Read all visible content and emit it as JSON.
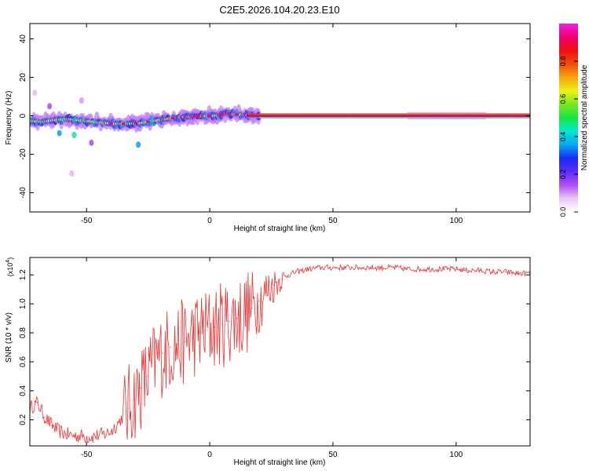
{
  "title": "C2E5.2026.104.20.23.E10",
  "colors": {
    "plot_bg": "#ffffff",
    "snr_line": "#ee3333",
    "frame": "#000000"
  },
  "chart_data": [
    {
      "type": "heatmap",
      "title": "C2E5.2026.104.20.23.E10",
      "xlabel": "Height of straight line (km)",
      "ylabel": "Frequency (Hz)",
      "xlim": [
        -73,
        130
      ],
      "ylim": [
        -50,
        48
      ],
      "xticks": [
        -50,
        0,
        50,
        100
      ],
      "xtick_labels": [
        "-50",
        "0",
        "50",
        "100"
      ],
      "yticks": [
        -40,
        -20,
        0,
        20,
        40
      ],
      "ytick_labels": [
        "-40",
        "-20",
        "0",
        "20",
        "40"
      ],
      "grid": false,
      "colorbar": {
        "label": "Normalized spectral amplitude",
        "range": [
          0,
          1
        ],
        "ticks": [
          "0.0",
          "0.2",
          "0.4",
          "0.6",
          "0.8"
        ],
        "tick_values": [
          0.0,
          0.2,
          0.4,
          0.6,
          0.8
        ],
        "colormap": [
          "#ffffff",
          "#e9c8f5",
          "#b04df2",
          "#5b2df5",
          "#1a2cf2",
          "#08a7f5",
          "#05e6d0",
          "#17e640",
          "#7ae820",
          "#eef018",
          "#f5a60a",
          "#f04b0a",
          "#f01010",
          "#ee0070",
          "#f020e0"
        ]
      },
      "ridge": [
        {
          "x": -73,
          "f": -2.5
        },
        {
          "x": -68,
          "f": -3.2
        },
        {
          "x": -63,
          "f": -2.2
        },
        {
          "x": -58,
          "f": -1.6
        },
        {
          "x": -53,
          "f": -2.4
        },
        {
          "x": -48,
          "f": -3.0
        },
        {
          "x": -43,
          "f": -3.6
        },
        {
          "x": -38,
          "f": -4.2
        },
        {
          "x": -33,
          "f": -4.1
        },
        {
          "x": -28,
          "f": -3.8
        },
        {
          "x": -23,
          "f": -2.6
        },
        {
          "x": -18,
          "f": -1.8
        },
        {
          "x": -13,
          "f": -0.9
        },
        {
          "x": -8,
          "f": -0.4
        },
        {
          "x": -3,
          "f": -0.2
        },
        {
          "x": 2,
          "f": 0.0
        },
        {
          "x": 7,
          "f": 1.2
        },
        {
          "x": 12,
          "f": 0.6
        },
        {
          "x": 17,
          "f": 0.1
        },
        {
          "x": 30,
          "f": 0.0
        },
        {
          "x": 60,
          "f": 0.0
        },
        {
          "x": 100,
          "f": 0.0
        },
        {
          "x": 130,
          "f": 0.0
        }
      ],
      "scatter_blobs": [
        {
          "x": -61,
          "f": -9,
          "v": 0.35
        },
        {
          "x": -55,
          "f": -10,
          "v": 0.45
        },
        {
          "x": -65,
          "f": 5,
          "v": 0.15
        },
        {
          "x": -52,
          "f": 8,
          "v": 0.1
        },
        {
          "x": -48,
          "f": -14,
          "v": 0.15
        },
        {
          "x": -29,
          "f": -15,
          "v": 0.35
        },
        {
          "x": -56,
          "f": -30,
          "v": 0.08
        },
        {
          "x": -71,
          "f": 12,
          "v": 0.08
        }
      ]
    },
    {
      "type": "line",
      "xlabel": "Height of straight line (km)",
      "ylabel": "SNR (10 * v/v)",
      "y_multiplier": "x10^4",
      "xlim": [
        -73,
        130
      ],
      "ylim": [
        0.02,
        1.32
      ],
      "xticks": [
        -50,
        0,
        50,
        100
      ],
      "xtick_labels": [
        "-50",
        "0",
        "50",
        "100"
      ],
      "yticks": [
        0.2,
        0.4,
        0.6,
        0.8,
        1.0,
        1.2
      ],
      "ytick_labels": [
        "0.2",
        "0.4",
        "0.6",
        "0.8",
        "1.0",
        "1.2"
      ],
      "grid": false,
      "series": [
        {
          "color": "#ee3333",
          "x": [
            -73,
            -70,
            -67,
            -64,
            -61,
            -58,
            -55,
            -52,
            -49,
            -46,
            -43,
            -40,
            -37,
            -34,
            -31,
            -28,
            -25,
            -22,
            -19,
            -16,
            -13,
            -10,
            -7,
            -4,
            -1,
            2,
            5,
            8,
            11,
            14,
            17,
            20,
            23,
            26,
            29,
            32,
            35,
            40,
            45,
            50,
            55,
            60,
            65,
            70,
            75,
            80,
            85,
            90,
            95,
            100,
            105,
            110,
            115,
            120,
            125,
            130
          ],
          "y": [
            0.28,
            0.32,
            0.22,
            0.16,
            0.12,
            0.1,
            0.09,
            0.09,
            0.08,
            0.09,
            0.1,
            0.12,
            0.18,
            0.26,
            0.34,
            0.42,
            0.5,
            0.6,
            0.66,
            0.7,
            0.72,
            0.74,
            0.78,
            0.8,
            0.82,
            0.84,
            0.86,
            0.88,
            0.9,
            0.93,
            0.97,
            1.02,
            1.08,
            1.13,
            1.17,
            1.2,
            1.22,
            1.24,
            1.25,
            1.25,
            1.25,
            1.25,
            1.25,
            1.25,
            1.25,
            1.24,
            1.24,
            1.24,
            1.24,
            1.24,
            1.23,
            1.23,
            1.22,
            1.22,
            1.21,
            1.21
          ]
        }
      ]
    }
  ]
}
